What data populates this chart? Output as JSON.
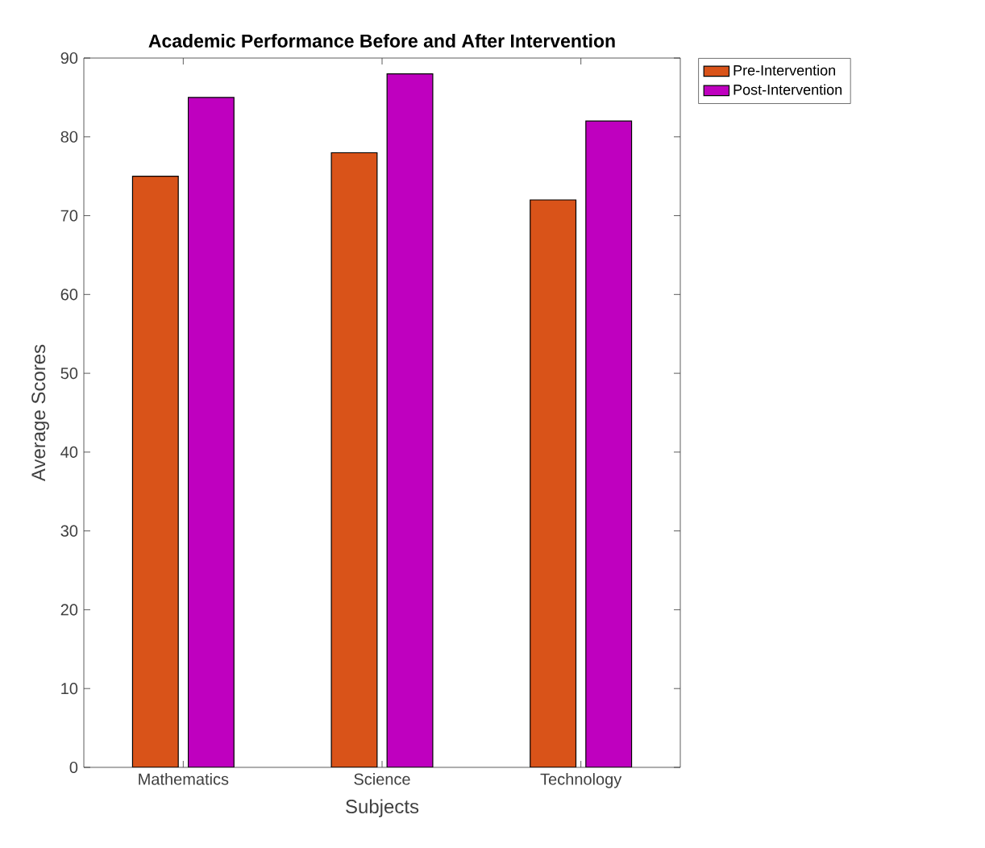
{
  "chart_data": {
    "type": "bar",
    "title": "Academic Performance Before and After Intervention",
    "xlabel": "Subjects",
    "ylabel": "Average Scores",
    "categories": [
      "Mathematics",
      "Science",
      "Technology"
    ],
    "series": [
      {
        "name": "Pre-Intervention",
        "color": "#d95319",
        "values": [
          75,
          78,
          72
        ]
      },
      {
        "name": "Post-Intervention",
        "color": "#bf00bf",
        "values": [
          85,
          88,
          82
        ]
      }
    ],
    "ylim": [
      0,
      90
    ],
    "yticks": [
      0,
      10,
      20,
      30,
      40,
      50,
      60,
      70,
      80,
      90
    ],
    "grid": false,
    "legend": "top right"
  }
}
